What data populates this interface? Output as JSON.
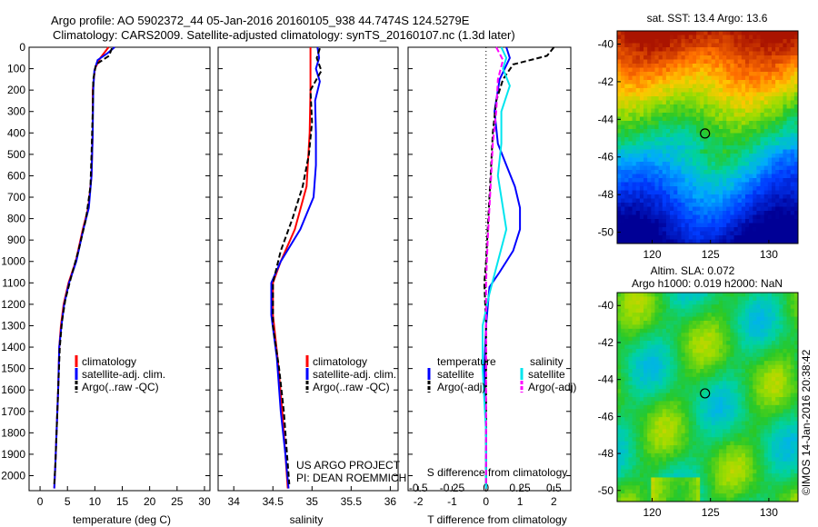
{
  "header": {
    "line1": "Argo profile: AO 5902372_44 05-Jan-2016 20160105_938 44.7474S 124.5279E",
    "line2": "Climatology: CARS2009. Satellite-adjusted climatology: synTS_20160107.nc (1.3d later)"
  },
  "project": {
    "line1": "US ARGO PROJECT",
    "line2": "PI: DEAN ROEMMICH"
  },
  "credit": "©IMOS 14-Jan-2016 20:38:42",
  "colors": {
    "climatology": "#ff0000",
    "satellite": "#0000ff",
    "argo": "#000000",
    "sal_satellite": "#00e5ee",
    "sal_argo": "#ff00ff"
  },
  "chart_data": [
    {
      "type": "line",
      "id": "temperature",
      "xlabel": "temperature (deg C)",
      "ylabel": "",
      "xlim": [
        -2,
        31
      ],
      "ylim": [
        2070,
        0
      ],
      "xticks": [
        0,
        5,
        10,
        15,
        20,
        25,
        30
      ],
      "yticks": [
        0,
        100,
        200,
        300,
        400,
        500,
        600,
        700,
        800,
        900,
        1000,
        1100,
        1200,
        1300,
        1400,
        1500,
        1600,
        1700,
        1800,
        1900,
        2000
      ],
      "legend": [
        "climatology",
        "satellite-adj. clim.",
        "Argo(..raw -QC)"
      ],
      "series": [
        {
          "name": "climatology",
          "color": "#ff0000",
          "dash": false,
          "points": [
            [
              12.5,
              0
            ],
            [
              11,
              50
            ],
            [
              10,
              100
            ],
            [
              9.6,
              200
            ],
            [
              9.6,
              400
            ],
            [
              9.4,
              600
            ],
            [
              8.8,
              750
            ],
            [
              7.8,
              850
            ],
            [
              6.5,
              1000
            ],
            [
              5.2,
              1100
            ],
            [
              4.3,
              1200
            ],
            [
              3.8,
              1300
            ],
            [
              3.5,
              1400
            ],
            [
              3.3,
              1600
            ],
            [
              3.0,
              1800
            ],
            [
              2.8,
              1950
            ],
            [
              2.6,
              2060
            ]
          ]
        },
        {
          "name": "satellite-adj. clim.",
          "color": "#0000ff",
          "dash": false,
          "points": [
            [
              13.6,
              0
            ],
            [
              12.2,
              30
            ],
            [
              10.5,
              60
            ],
            [
              9.9,
              110
            ],
            [
              9.7,
              200
            ],
            [
              9.6,
              400
            ],
            [
              9.4,
              600
            ],
            [
              8.9,
              750
            ],
            [
              7.9,
              850
            ],
            [
              6.6,
              1000
            ],
            [
              5.3,
              1100
            ],
            [
              4.4,
              1200
            ],
            [
              3.9,
              1300
            ],
            [
              3.5,
              1400
            ],
            [
              3.3,
              1600
            ],
            [
              3.0,
              1800
            ],
            [
              2.8,
              1950
            ],
            [
              2.6,
              2060
            ]
          ]
        },
        {
          "name": "Argo(..raw -QC)",
          "color": "#000000",
          "dash": true,
          "points": [
            [
              13.1,
              5
            ],
            [
              12.6,
              40
            ],
            [
              10.2,
              80
            ],
            [
              9.7,
              150
            ],
            [
              9.6,
              300
            ],
            [
              9.4,
              500
            ],
            [
              9.2,
              650
            ],
            [
              8.4,
              800
            ],
            [
              7.0,
              950
            ],
            [
              5.6,
              1080
            ],
            [
              4.6,
              1180
            ],
            [
              4.0,
              1280
            ],
            [
              3.6,
              1400
            ],
            [
              3.3,
              1600
            ],
            [
              3.0,
              1800
            ],
            [
              2.8,
              1950
            ],
            [
              2.6,
              2040
            ]
          ]
        }
      ]
    },
    {
      "type": "line",
      "id": "salinity",
      "xlabel": "salinity",
      "ylabel": "",
      "xlim": [
        33.8,
        36.1
      ],
      "ylim": [
        2070,
        0
      ],
      "xticks": [
        34,
        34.5,
        35,
        35.5,
        36
      ],
      "xticklabels": [
        "34",
        "34.5",
        "35",
        "35.5",
        "36"
      ],
      "legend": [
        "climatology",
        "satellite-adj. clim.",
        "Argo(..raw -QC)"
      ],
      "series": [
        {
          "name": "climatology",
          "color": "#ff0000",
          "dash": false,
          "points": [
            [
              34.98,
              0
            ],
            [
              34.98,
              100
            ],
            [
              34.98,
              200
            ],
            [
              34.97,
              400
            ],
            [
              34.93,
              650
            ],
            [
              34.78,
              850
            ],
            [
              34.6,
              1000
            ],
            [
              34.5,
              1100
            ],
            [
              34.5,
              1250
            ],
            [
              34.56,
              1450
            ],
            [
              34.62,
              1700
            ],
            [
              34.66,
              1900
            ],
            [
              34.69,
              2060
            ]
          ]
        },
        {
          "name": "satellite-adj. clim.",
          "color": "#0000ff",
          "dash": false,
          "points": [
            [
              35.07,
              0
            ],
            [
              35.09,
              50
            ],
            [
              35.05,
              100
            ],
            [
              35.1,
              160
            ],
            [
              35.04,
              250
            ],
            [
              35.05,
              400
            ],
            [
              35.05,
              550
            ],
            [
              35.02,
              700
            ],
            [
              34.85,
              850
            ],
            [
              34.6,
              1000
            ],
            [
              34.48,
              1100
            ],
            [
              34.48,
              1250
            ],
            [
              34.55,
              1450
            ],
            [
              34.6,
              1700
            ],
            [
              34.66,
              1900
            ],
            [
              34.7,
              2060
            ]
          ]
        },
        {
          "name": "Argo(..raw -QC)",
          "color": "#000000",
          "dash": true,
          "points": [
            [
              35.1,
              5
            ],
            [
              35.06,
              50
            ],
            [
              35.12,
              110
            ],
            [
              34.98,
              200
            ],
            [
              35.0,
              350
            ],
            [
              34.96,
              500
            ],
            [
              34.88,
              650
            ],
            [
              34.75,
              800
            ],
            [
              34.6,
              950
            ],
            [
              34.5,
              1100
            ],
            [
              34.5,
              1300
            ],
            [
              34.58,
              1500
            ],
            [
              34.64,
              1700
            ],
            [
              34.68,
              1900
            ],
            [
              34.71,
              2040
            ]
          ]
        }
      ]
    },
    {
      "type": "line",
      "id": "difference",
      "xlabel": "T difference from climatology",
      "xlabel2": "S difference from climatology",
      "xlim": [
        -2.3,
        2.5
      ],
      "ylim": [
        2070,
        0
      ],
      "xticks": [
        -2,
        -1,
        0,
        1,
        2
      ],
      "xticks2": [
        -0.5,
        -0.25,
        0,
        0.25,
        0.5
      ],
      "legend_temperature_title": "temperature",
      "legend_salinity_title": "salinity",
      "legend": [
        "satellite",
        "Argo(-adj)",
        "satellite",
        "Argo(-adj)"
      ],
      "series": [
        {
          "name": "temperature satellite",
          "color": "#0000ff",
          "dash": false,
          "points": [
            [
              0.6,
              0
            ],
            [
              0.7,
              50
            ],
            [
              0.4,
              150
            ],
            [
              0.25,
              300
            ],
            [
              0.35,
              450
            ],
            [
              0.6,
              550
            ],
            [
              0.85,
              650
            ],
            [
              1.0,
              750
            ],
            [
              1.0,
              850
            ],
            [
              0.8,
              950
            ],
            [
              0.4,
              1050
            ],
            [
              0.1,
              1120
            ],
            [
              0,
              1300
            ],
            [
              -0.05,
              1500
            ],
            [
              0,
              1800
            ],
            [
              0,
              2060
            ]
          ]
        },
        {
          "name": "temperature Argo(-adj)",
          "color": "#000000",
          "dash": true,
          "points": [
            [
              2.0,
              0
            ],
            [
              1.8,
              40
            ],
            [
              0.8,
              80
            ],
            [
              0.5,
              150
            ],
            [
              0.3,
              250
            ],
            [
              0.2,
              400
            ],
            [
              0.15,
              550
            ],
            [
              0.1,
              700
            ],
            [
              0.05,
              850
            ],
            [
              0,
              1000
            ],
            [
              -0.05,
              1100
            ],
            [
              0,
              1300
            ],
            [
              0,
              1600
            ],
            [
              0,
              1900
            ],
            [
              0,
              2040
            ]
          ]
        },
        {
          "name": "salinity satellite",
          "color": "#00e5ee",
          "dash": false,
          "points": [
            [
              0.45,
              0
            ],
            [
              0.6,
              50
            ],
            [
              0.5,
              100
            ],
            [
              0.7,
              180
            ],
            [
              0.45,
              300
            ],
            [
              0.45,
              450
            ],
            [
              0.35,
              600
            ],
            [
              0.5,
              750
            ],
            [
              0.6,
              850
            ],
            [
              0.35,
              1000
            ],
            [
              0.1,
              1150
            ],
            [
              -0.1,
              1300
            ],
            [
              -0.1,
              1500
            ],
            [
              0,
              1800
            ],
            [
              0,
              2060
            ]
          ]
        },
        {
          "name": "salinity Argo(-adj)",
          "color": "#ff00ff",
          "dash": true,
          "points": [
            [
              0.3,
              0
            ],
            [
              0.5,
              60
            ],
            [
              0.35,
              150
            ],
            [
              0.3,
              300
            ],
            [
              0.2,
              450
            ],
            [
              0.15,
              600
            ],
            [
              0.1,
              750
            ],
            [
              0.05,
              900
            ],
            [
              0,
              1100
            ],
            [
              0,
              1400
            ],
            [
              0,
              1700
            ],
            [
              0,
              2040
            ]
          ]
        }
      ]
    },
    {
      "type": "heatmap",
      "id": "sst_map",
      "title": "sat. SST: 13.4  Argo: 13.6",
      "xticks": [
        120,
        125,
        130
      ],
      "yticks": [
        -40,
        -42,
        -44,
        -46,
        -48,
        -50
      ],
      "xlim": [
        117,
        132.5
      ],
      "ylim": [
        -50.6,
        -39.3
      ],
      "marker": [
        124.53,
        -44.75
      ]
    },
    {
      "type": "heatmap",
      "id": "sla_map",
      "title": "Altim. SLA: 0.072",
      "subtitle": "Argo h1000: 0.019 h2000: NaN",
      "xticks": [
        120,
        125,
        130
      ],
      "yticks": [
        -40,
        -42,
        -44,
        -46,
        -48,
        -50
      ],
      "xlim": [
        117,
        132.5
      ],
      "ylim": [
        -50.6,
        -39.3
      ],
      "marker": [
        124.53,
        -44.75
      ]
    }
  ]
}
